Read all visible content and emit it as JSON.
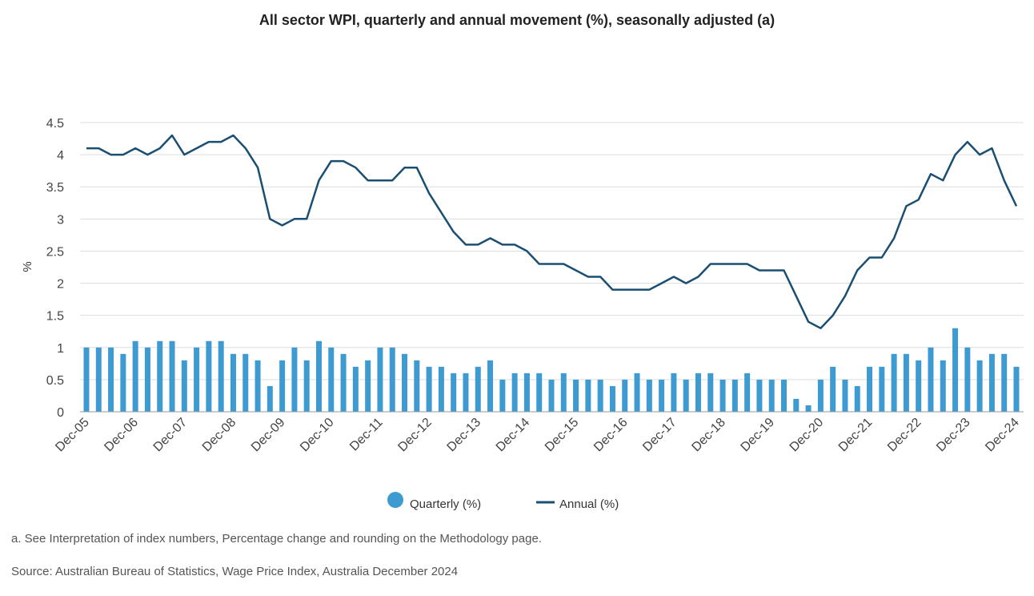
{
  "chart_data": {
    "type": "bar+line",
    "title": "All sector WPI, quarterly and annual movement (%), seasonally adjusted (a)",
    "ylabel": "%",
    "ylim": [
      0,
      4.5
    ],
    "yticks": [
      "0",
      "0.5",
      "1",
      "1.5",
      "2",
      "2.5",
      "3",
      "3.5",
      "4",
      "4.5"
    ],
    "grid": true,
    "legend_position": "bottom",
    "x_tick_labels": [
      "Dec-05",
      "Dec-06",
      "Dec-07",
      "Dec-08",
      "Dec-09",
      "Dec-10",
      "Dec-11",
      "Dec-12",
      "Dec-13",
      "Dec-14",
      "Dec-15",
      "Dec-16",
      "Dec-17",
      "Dec-18",
      "Dec-19",
      "Dec-20",
      "Dec-21",
      "Dec-22",
      "Dec-23",
      "Dec-24"
    ],
    "x_tick_every": 4,
    "series": [
      {
        "name": "Quarterly (%)",
        "kind": "bar",
        "color": "#3d9bd2",
        "values": [
          1.0,
          1.0,
          1.0,
          0.9,
          1.1,
          1.0,
          1.1,
          1.1,
          0.8,
          1.0,
          1.1,
          1.1,
          0.9,
          0.9,
          0.8,
          0.4,
          0.8,
          1.0,
          0.8,
          1.1,
          1.0,
          0.9,
          0.7,
          0.8,
          1.0,
          1.0,
          0.9,
          0.8,
          0.7,
          0.7,
          0.6,
          0.6,
          0.7,
          0.8,
          0.5,
          0.6,
          0.6,
          0.6,
          0.5,
          0.6,
          0.5,
          0.5,
          0.5,
          0.4,
          0.5,
          0.6,
          0.5,
          0.5,
          0.6,
          0.5,
          0.6,
          0.6,
          0.5,
          0.5,
          0.6,
          0.5,
          0.5,
          0.5,
          0.2,
          0.1,
          0.5,
          0.7,
          0.5,
          0.4,
          0.7,
          0.7,
          0.9,
          0.9,
          0.8,
          1.0,
          0.8,
          1.3,
          1.0,
          0.8,
          0.9,
          0.9,
          0.7
        ]
      },
      {
        "name": "Annual (%)",
        "kind": "line",
        "color": "#1b4f72",
        "values": [
          4.1,
          4.1,
          4.0,
          4.0,
          4.1,
          4.0,
          4.1,
          4.3,
          4.0,
          4.1,
          4.2,
          4.2,
          4.3,
          4.1,
          3.8,
          3.0,
          2.9,
          3.0,
          3.0,
          3.6,
          3.9,
          3.9,
          3.8,
          3.6,
          3.6,
          3.6,
          3.8,
          3.8,
          3.4,
          3.1,
          2.8,
          2.6,
          2.6,
          2.7,
          2.6,
          2.6,
          2.5,
          2.3,
          2.3,
          2.3,
          2.2,
          2.1,
          2.1,
          1.9,
          1.9,
          1.9,
          1.9,
          2.0,
          2.1,
          2.0,
          2.1,
          2.3,
          2.3,
          2.3,
          2.3,
          2.2,
          2.2,
          2.2,
          1.8,
          1.4,
          1.3,
          1.5,
          1.8,
          2.2,
          2.4,
          2.4,
          2.7,
          3.2,
          3.3,
          3.7,
          3.6,
          4.0,
          4.2,
          4.0,
          4.1,
          3.6,
          3.2
        ]
      }
    ]
  },
  "notes": {
    "footnote": "a. See Interpretation of index numbers, Percentage change and rounding on the Methodology page.",
    "source": "Source: Australian Bureau of Statistics, Wage Price Index, Australia December 2024"
  }
}
